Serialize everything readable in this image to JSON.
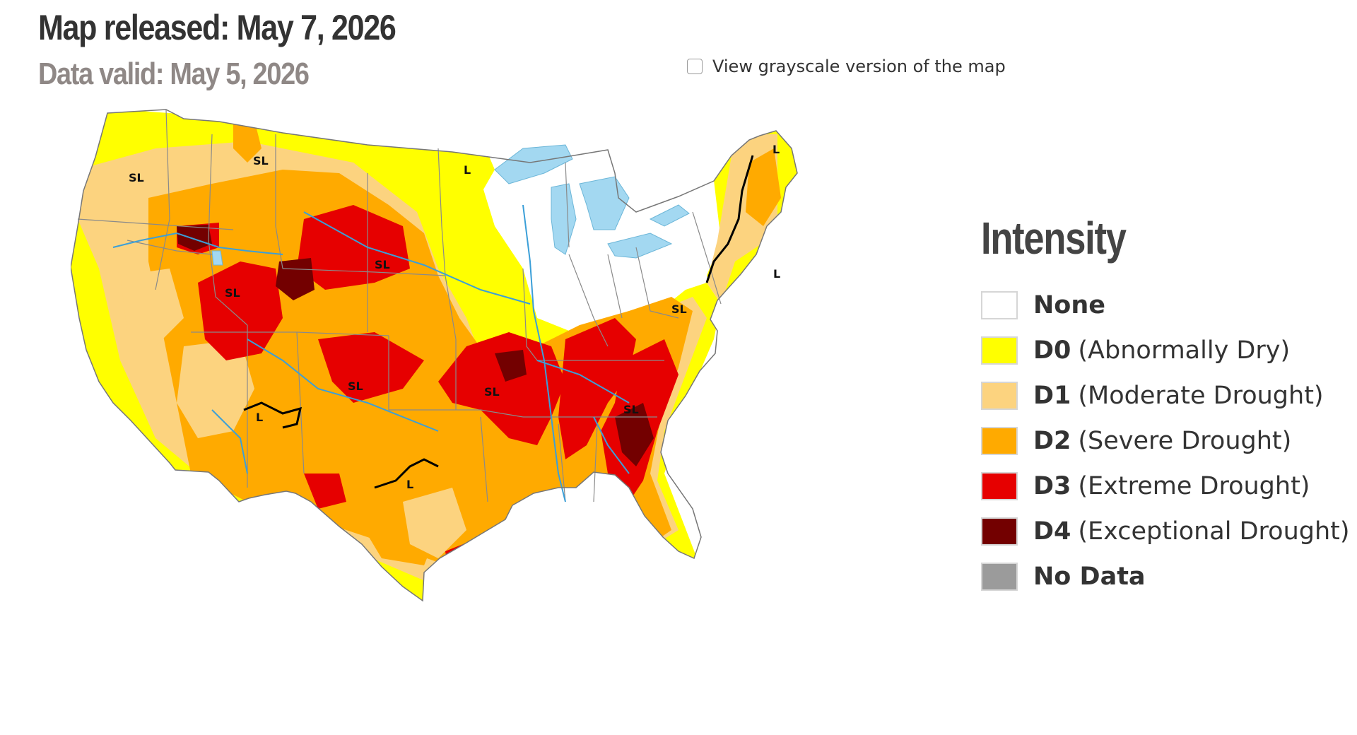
{
  "header": {
    "map_released": "Map released: May 7, 2026",
    "data_valid": "Data valid: May 5, 2026"
  },
  "controls": {
    "grayscale_label": "View grayscale version of the map",
    "grayscale_checked": false
  },
  "map": {
    "labels": {
      "sl": "SL",
      "l": "L"
    },
    "colors": {
      "none": "#ffffff",
      "d0": "#ffff00",
      "d1": "#fcd37f",
      "d2": "#ffaa00",
      "d3": "#e60000",
      "d4": "#730000",
      "water": "#a3d8f1",
      "river": "#3b9fd8",
      "border": "#999999"
    }
  },
  "legend": {
    "title": "Intensity",
    "items": [
      {
        "code": "None",
        "desc": "",
        "color": "#ffffff"
      },
      {
        "code": "D0",
        "desc": "(Abnormally Dry)",
        "color": "#ffff00"
      },
      {
        "code": "D1",
        "desc": "(Moderate Drought)",
        "color": "#fcd37f"
      },
      {
        "code": "D2",
        "desc": "(Severe Drought)",
        "color": "#ffaa00"
      },
      {
        "code": "D3",
        "desc": "(Extreme Drought)",
        "color": "#e60000"
      },
      {
        "code": "D4",
        "desc": "(Exceptional Drought)",
        "color": "#730000"
      },
      {
        "code": "No Data",
        "desc": "",
        "color": "#9b9b9b"
      }
    ]
  }
}
